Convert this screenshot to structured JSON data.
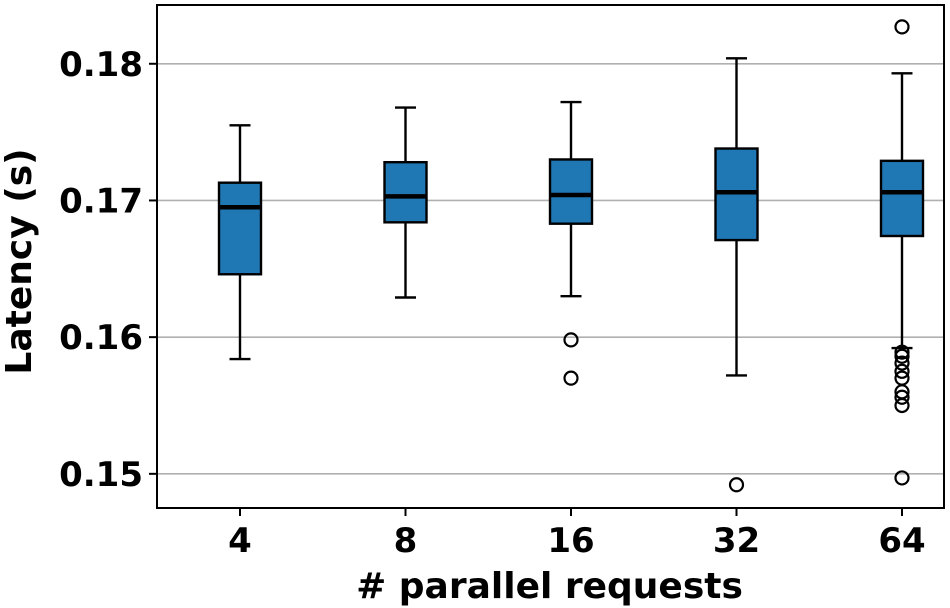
{
  "chart_data": {
    "type": "box",
    "title": "",
    "xlabel": "# parallel requests",
    "ylabel": "Latency (s)",
    "categories": [
      "4",
      "8",
      "16",
      "32",
      "64"
    ],
    "ylim": [
      0.1475,
      0.1843
    ],
    "yticks": [
      0.15,
      0.16,
      0.17,
      0.18
    ],
    "ytick_labels": [
      "0.15",
      "0.16",
      "0.17",
      "0.18"
    ],
    "grid": "horizontal",
    "box_color": "#1f77b4",
    "median_color": "#000000",
    "boxes": [
      {
        "category": "4",
        "whisker_low": 0.1584,
        "q1": 0.1646,
        "median": 0.1695,
        "q3": 0.1713,
        "whisker_high": 0.1755,
        "outliers": []
      },
      {
        "category": "8",
        "whisker_low": 0.1629,
        "q1": 0.1684,
        "median": 0.1703,
        "q3": 0.1728,
        "whisker_high": 0.1768,
        "outliers": []
      },
      {
        "category": "16",
        "whisker_low": 0.163,
        "q1": 0.1683,
        "median": 0.1704,
        "q3": 0.173,
        "whisker_high": 0.1772,
        "outliers": [
          0.1598,
          0.157
        ]
      },
      {
        "category": "32",
        "whisker_low": 0.1572,
        "q1": 0.1671,
        "median": 0.1706,
        "q3": 0.1738,
        "whisker_high": 0.1804,
        "outliers": [
          0.1492
        ]
      },
      {
        "category": "64",
        "whisker_low": 0.1592,
        "q1": 0.1674,
        "median": 0.1706,
        "q3": 0.1729,
        "whisker_high": 0.1793,
        "outliers": [
          0.1827,
          0.1589,
          0.1586,
          0.1581,
          0.1575,
          0.157,
          0.156,
          0.1556,
          0.155,
          0.1497
        ]
      }
    ]
  }
}
